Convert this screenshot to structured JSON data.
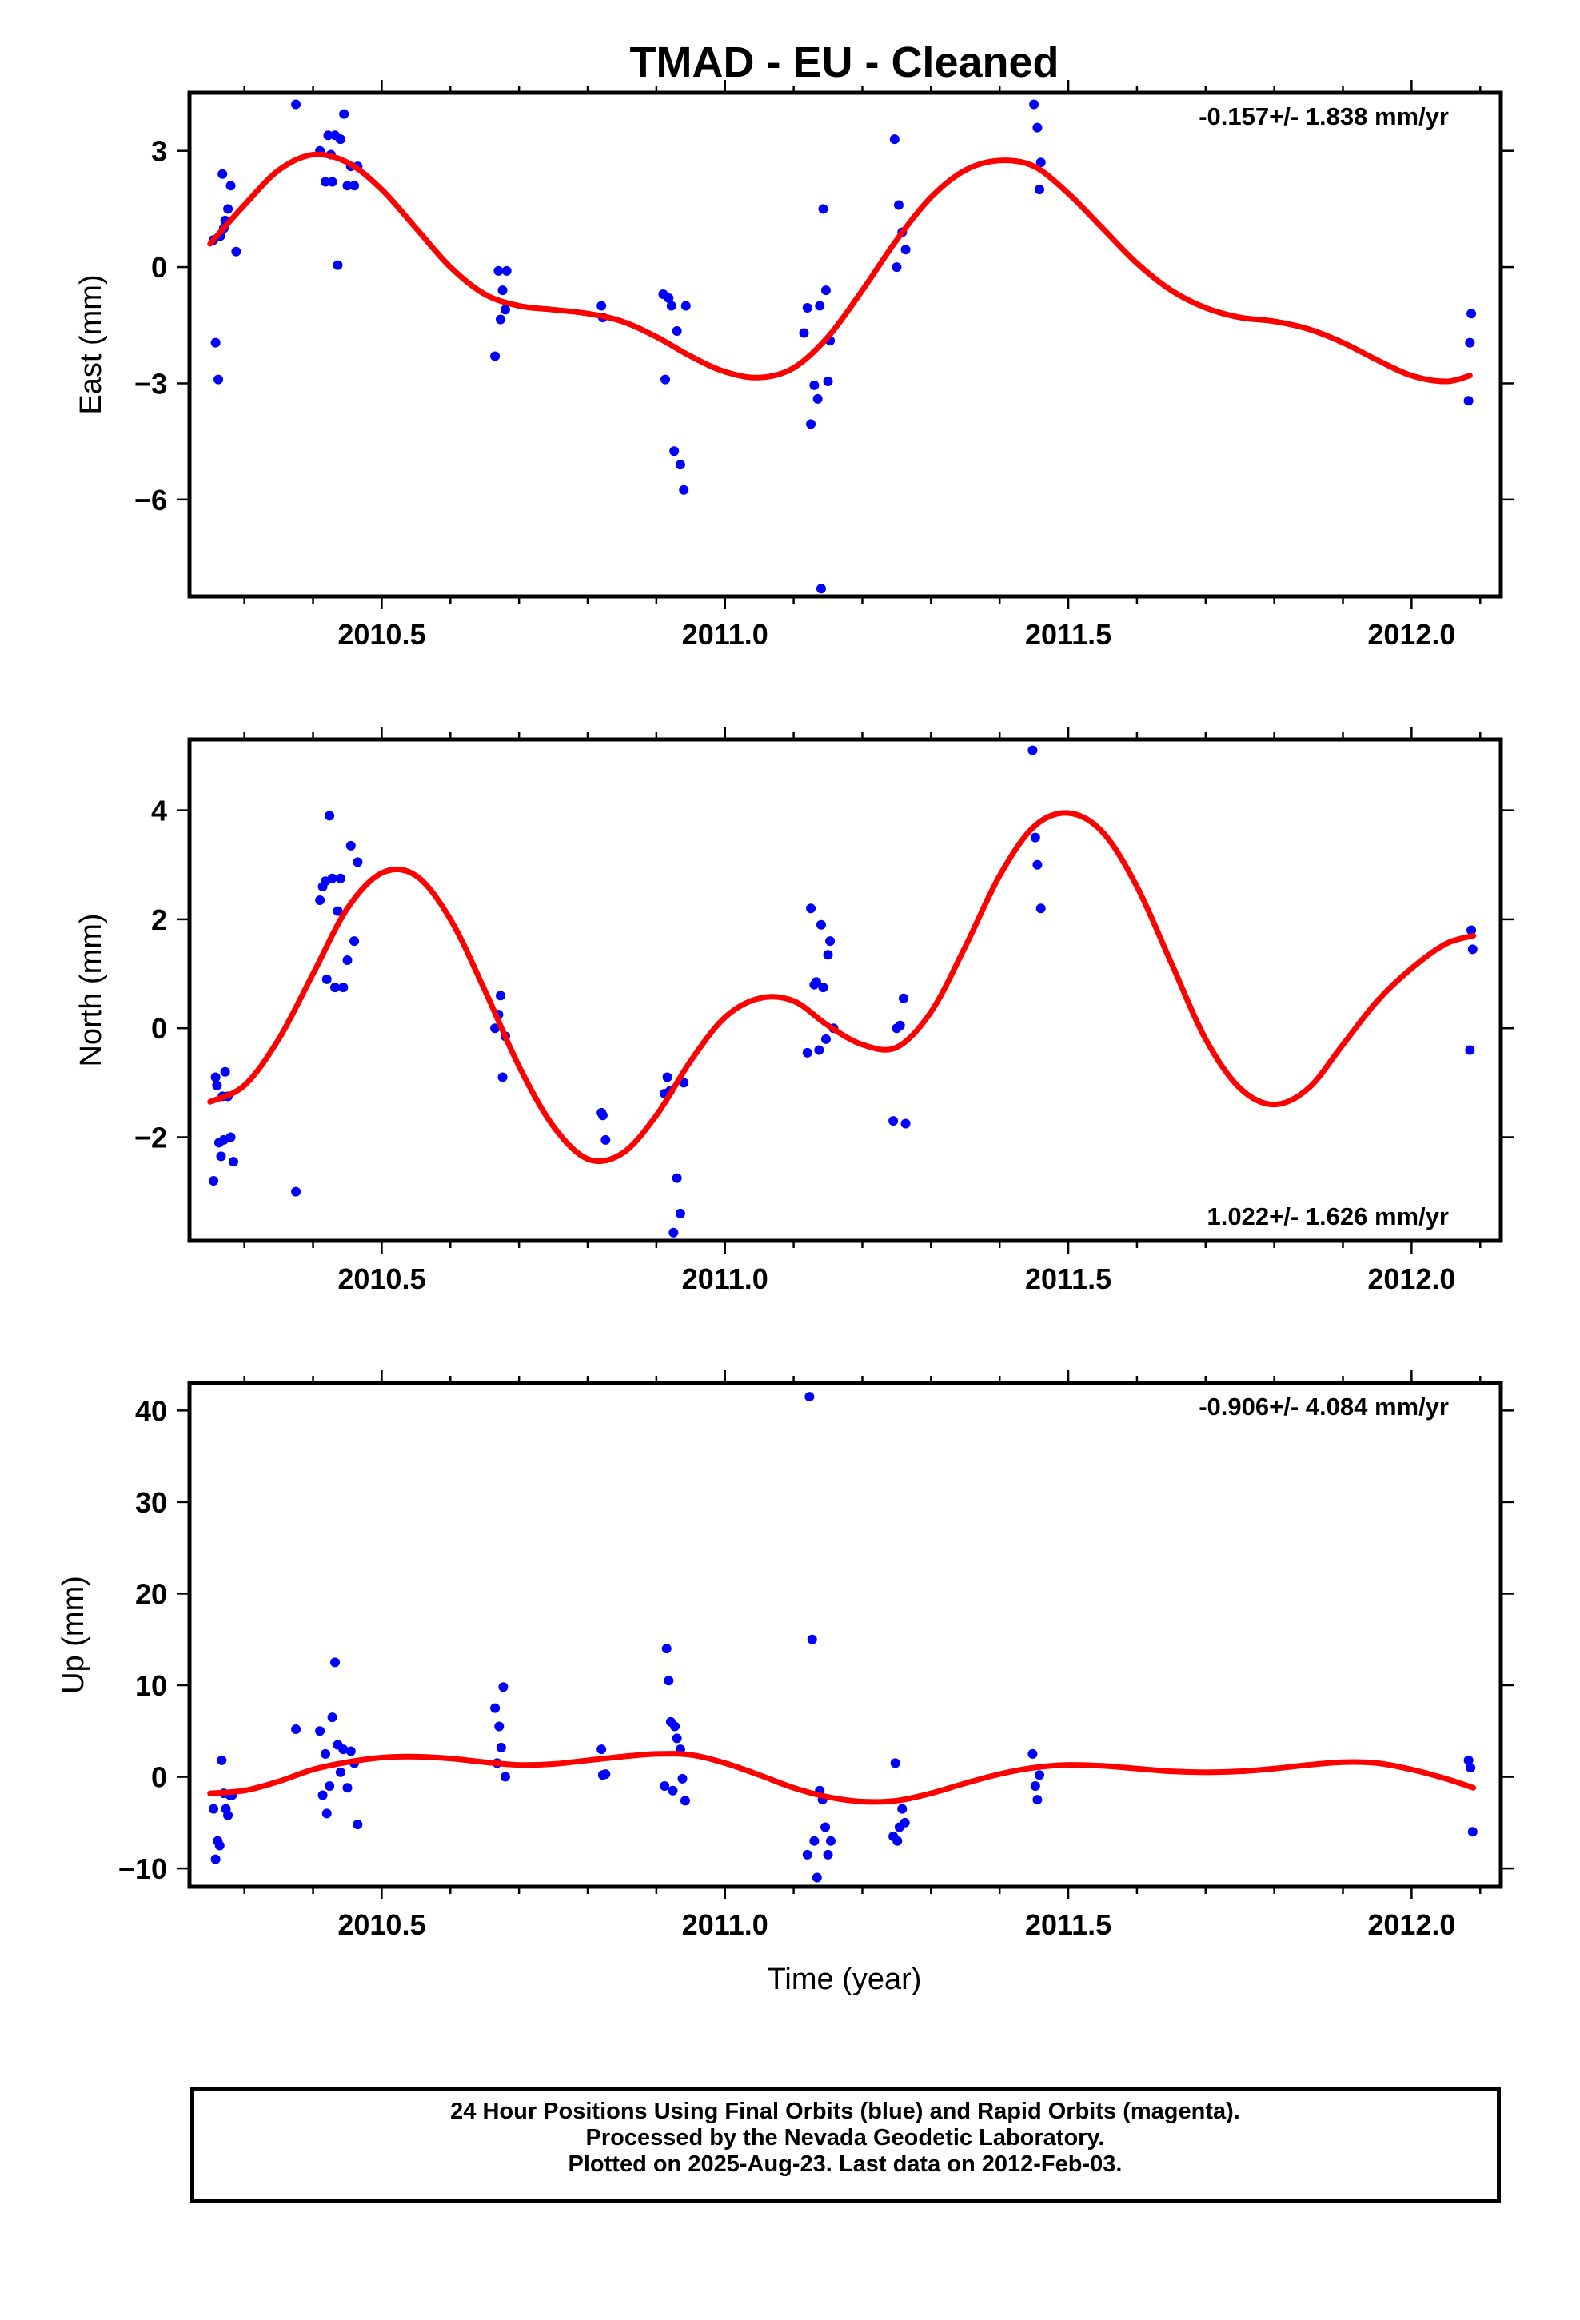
{
  "title": "TMAD  - EU - Cleaned",
  "xlabel": "Time (year)",
  "colors": {
    "fit": "#ff0000",
    "points": "#0000ff",
    "frame": "#000000"
  },
  "caption": [
    "24 Hour Positions Using Final Orbits (blue) and Rapid Orbits (magenta).",
    "Processed by the Nevada Geodetic Laboratory.",
    "Plotted on 2025-Aug-23. Last data on 2012-Feb-03."
  ],
  "chart_data": [
    {
      "type": "scatter",
      "ylabel": "East (mm)",
      "rate_label": "-0.157+/- 1.838 mm/yr",
      "rate_position": "top-right",
      "xlim": [
        2010.22,
        2012.13
      ],
      "ylim": [
        -8.5,
        4.5
      ],
      "xticks": [
        2010.5,
        2011.0,
        2011.5,
        2012.0
      ],
      "xtick_labels": [
        "2010.5",
        "2011.0",
        "2011.5",
        "2012.0"
      ],
      "yticks": [
        3,
        0,
        -3,
        -6
      ],
      "ytick_labels": [
        "3",
        "0",
        "−3",
        "−6"
      ],
      "series": [
        {
          "kind": "points",
          "x": [
            2010.255,
            2010.258,
            2010.262,
            2010.265,
            2010.268,
            2010.27,
            2010.272,
            2010.276,
            2010.28,
            2010.288,
            2010.375,
            2010.41,
            2010.418,
            2010.422,
            2010.426,
            2010.428,
            2010.432,
            2010.436,
            2010.44,
            2010.445,
            2010.45,
            2010.455,
            2010.46,
            2010.465,
            2010.665,
            2010.67,
            2010.673,
            2010.676,
            2010.68,
            2010.682,
            2010.82,
            2010.822,
            2010.91,
            2010.913,
            2010.918,
            2010.922,
            2010.926,
            2010.93,
            2010.935,
            2010.94,
            2010.943,
            2011.115,
            2011.12,
            2011.125,
            2011.13,
            2011.135,
            2011.138,
            2011.14,
            2011.143,
            2011.147,
            2011.15,
            2011.153,
            2011.247,
            2011.25,
            2011.253,
            2011.258,
            2011.263,
            2011.45,
            2011.455,
            2011.458,
            2011.46,
            2012.083,
            2012.085,
            2012.087
          ],
          "y": [
            0.7,
            -1.95,
            -2.9,
            0.8,
            2.4,
            1.0,
            1.2,
            1.5,
            2.1,
            0.4,
            4.2,
            3.0,
            2.2,
            3.4,
            2.9,
            2.2,
            3.4,
            0.05,
            3.3,
            3.95,
            2.1,
            2.6,
            2.1,
            2.6,
            -2.3,
            -0.1,
            -1.35,
            -0.6,
            -1.1,
            -0.1,
            -1.0,
            -1.3,
            -0.7,
            -2.9,
            -0.8,
            -1.0,
            -4.75,
            -1.65,
            -5.1,
            -5.75,
            -1.0,
            -1.7,
            -1.05,
            -4.05,
            -3.05,
            -3.4,
            -1.0,
            -8.3,
            1.5,
            -0.6,
            -2.95,
            -1.9,
            3.3,
            0.0,
            1.6,
            0.9,
            0.45,
            4.2,
            3.6,
            2.0,
            2.7,
            -3.45,
            -1.95,
            -1.2
          ]
        },
        {
          "kind": "fit",
          "x": [
            2010.25,
            2010.3,
            2010.35,
            2010.4,
            2010.45,
            2010.5,
            2010.55,
            2010.6,
            2010.65,
            2010.7,
            2010.75,
            2010.8,
            2010.85,
            2010.9,
            2010.95,
            2011.0,
            2011.05,
            2011.1,
            2011.15,
            2011.2,
            2011.25,
            2011.3,
            2011.35,
            2011.4,
            2011.45,
            2011.5,
            2011.55,
            2011.6,
            2011.65,
            2011.7,
            2011.75,
            2011.8,
            2011.85,
            2011.9,
            2011.95,
            2012.0,
            2012.05,
            2012.085
          ],
          "y": [
            0.6,
            1.6,
            2.5,
            2.9,
            2.7,
            2.0,
            1.0,
            0.0,
            -0.7,
            -1.0,
            -1.1,
            -1.2,
            -1.4,
            -1.8,
            -2.3,
            -2.7,
            -2.85,
            -2.6,
            -1.8,
            -0.6,
            0.7,
            1.8,
            2.5,
            2.75,
            2.6,
            1.9,
            1.0,
            0.1,
            -0.6,
            -1.05,
            -1.3,
            -1.4,
            -1.6,
            -1.95,
            -2.4,
            -2.8,
            -2.95,
            -2.8
          ]
        }
      ]
    },
    {
      "type": "scatter",
      "ylabel": "North (mm)",
      "rate_label": "1.022+/- 1.626 mm/yr",
      "rate_position": "bottom-right",
      "xlim": [
        2010.22,
        2012.13
      ],
      "ylim": [
        -3.9,
        5.3
      ],
      "xticks": [
        2010.5,
        2011.0,
        2011.5,
        2012.0
      ],
      "xtick_labels": [
        "2010.5",
        "2011.0",
        "2011.5",
        "2012.0"
      ],
      "yticks": [
        4,
        2,
        0,
        -2
      ],
      "ytick_labels": [
        "4",
        "2",
        "0",
        "−2"
      ],
      "series": [
        {
          "kind": "points",
          "x": [
            2010.255,
            2010.258,
            2010.26,
            2010.263,
            2010.266,
            2010.268,
            2010.27,
            2010.272,
            2010.276,
            2010.28,
            2010.284,
            2010.375,
            2010.41,
            2010.414,
            2010.418,
            2010.42,
            2010.424,
            2010.428,
            2010.432,
            2010.436,
            2010.44,
            2010.444,
            2010.45,
            2010.455,
            2010.46,
            2010.465,
            2010.665,
            2010.67,
            2010.673,
            2010.676,
            2010.68,
            2010.82,
            2010.822,
            2010.826,
            2010.912,
            2010.916,
            2010.92,
            2010.925,
            2010.93,
            2010.935,
            2010.94,
            2011.12,
            2011.125,
            2011.13,
            2011.133,
            2011.137,
            2011.14,
            2011.143,
            2011.147,
            2011.15,
            2011.153,
            2011.158,
            2011.245,
            2011.25,
            2011.255,
            2011.26,
            2011.263,
            2011.448,
            2011.452,
            2011.455,
            2011.46,
            2012.085,
            2012.087,
            2012.089
          ],
          "y": [
            -2.8,
            -0.9,
            -1.05,
            -2.1,
            -2.35,
            -1.25,
            -2.05,
            -0.8,
            -1.25,
            -2.0,
            -2.45,
            -3.0,
            2.35,
            2.6,
            2.7,
            0.9,
            3.9,
            2.75,
            0.75,
            2.15,
            2.75,
            0.75,
            1.25,
            3.35,
            1.6,
            3.05,
            0.0,
            0.25,
            0.6,
            -0.9,
            -0.15,
            -1.55,
            -1.6,
            -2.05,
            -1.2,
            -0.9,
            -1.15,
            -3.75,
            -2.75,
            -3.4,
            -1.0,
            -0.45,
            2.2,
            0.8,
            0.85,
            -0.4,
            1.9,
            0.75,
            -0.2,
            1.35,
            1.6,
            0.0,
            -1.7,
            0.0,
            0.05,
            0.55,
            -1.75,
            5.1,
            3.5,
            3.0,
            2.2,
            -0.4,
            1.8,
            1.45
          ]
        },
        {
          "kind": "fit",
          "x": [
            2010.25,
            2010.3,
            2010.35,
            2010.4,
            2010.45,
            2010.5,
            2010.55,
            2010.6,
            2010.65,
            2010.7,
            2010.75,
            2010.8,
            2010.85,
            2010.9,
            2010.95,
            2011.0,
            2011.05,
            2011.1,
            2011.15,
            2011.2,
            2011.25,
            2011.3,
            2011.35,
            2011.4,
            2011.45,
            2011.5,
            2011.55,
            2011.6,
            2011.65,
            2011.7,
            2011.75,
            2011.8,
            2011.85,
            2011.9,
            2011.95,
            2012.0,
            2012.05,
            2012.09
          ],
          "y": [
            -1.35,
            -1.05,
            -0.2,
            1.0,
            2.2,
            2.85,
            2.8,
            2.0,
            0.7,
            -0.7,
            -1.8,
            -2.4,
            -2.3,
            -1.6,
            -0.6,
            0.2,
            0.55,
            0.5,
            0.05,
            -0.3,
            -0.35,
            0.3,
            1.5,
            2.8,
            3.7,
            3.95,
            3.6,
            2.6,
            1.2,
            -0.2,
            -1.1,
            -1.4,
            -1.1,
            -0.3,
            0.5,
            1.1,
            1.55,
            1.7
          ]
        }
      ]
    },
    {
      "type": "scatter",
      "ylabel": "Up (mm)",
      "rate_label": "-0.906+/- 4.084 mm/yr",
      "rate_position": "top-right",
      "xlim": [
        2010.22,
        2012.13
      ],
      "ylim": [
        -12,
        43
      ],
      "xticks": [
        2010.5,
        2011.0,
        2011.5,
        2012.0
      ],
      "xtick_labels": [
        "2010.5",
        "2011.0",
        "2011.5",
        "2012.0"
      ],
      "yticks": [
        40,
        30,
        20,
        10,
        0,
        -10
      ],
      "ytick_labels": [
        "40",
        "30",
        "20",
        "10",
        "0",
        "−10"
      ],
      "series": [
        {
          "kind": "points",
          "x": [
            2010.255,
            2010.258,
            2010.261,
            2010.264,
            2010.267,
            2010.27,
            2010.273,
            2010.276,
            2010.279,
            2010.282,
            2010.375,
            2010.41,
            2010.414,
            2010.418,
            2010.42,
            2010.424,
            2010.428,
            2010.432,
            2010.436,
            2010.44,
            2010.444,
            2010.45,
            2010.455,
            2010.46,
            2010.465,
            2010.665,
            2010.668,
            2010.671,
            2010.674,
            2010.677,
            2010.68,
            2010.82,
            2010.822,
            2010.826,
            2010.912,
            2010.915,
            2010.918,
            2010.921,
            2010.924,
            2010.927,
            2010.93,
            2010.935,
            2010.938,
            2010.942,
            2011.12,
            2011.123,
            2011.127,
            2011.13,
            2011.134,
            2011.138,
            2011.142,
            2011.146,
            2011.15,
            2011.154,
            2011.245,
            2011.248,
            2011.251,
            2011.254,
            2011.258,
            2011.262,
            2011.448,
            2011.452,
            2011.455,
            2011.458,
            2012.083,
            2012.086,
            2012.089
          ],
          "y": [
            -3.5,
            -9.0,
            -7.0,
            -7.5,
            1.8,
            -1.8,
            -3.5,
            -4.2,
            -2.0,
            -2.0,
            5.2,
            5.0,
            -2.0,
            2.5,
            -4.0,
            -1.0,
            6.5,
            12.5,
            3.5,
            0.5,
            3.0,
            -1.2,
            2.8,
            1.5,
            -5.2,
            7.5,
            1.5,
            5.5,
            3.2,
            9.8,
            0.0,
            3.0,
            0.2,
            0.3,
            -1.0,
            14.0,
            10.5,
            6.0,
            -1.5,
            5.5,
            4.2,
            3.0,
            -0.2,
            -2.6,
            -8.5,
            41.5,
            15.0,
            -7.0,
            -11.0,
            -1.5,
            -2.5,
            -5.5,
            -8.5,
            -7.0,
            -6.5,
            1.5,
            -7.0,
            -5.5,
            -3.5,
            -5.0,
            2.5,
            -1.0,
            -2.5,
            0.2,
            1.8,
            1.0,
            -6.0
          ]
        },
        {
          "kind": "fit",
          "x": [
            2010.25,
            2010.3,
            2010.35,
            2010.4,
            2010.45,
            2010.5,
            2010.55,
            2010.6,
            2010.65,
            2010.7,
            2010.75,
            2010.8,
            2010.85,
            2010.9,
            2010.95,
            2011.0,
            2011.05,
            2011.1,
            2011.15,
            2011.2,
            2011.25,
            2011.3,
            2011.35,
            2011.4,
            2011.45,
            2011.5,
            2011.55,
            2011.6,
            2011.65,
            2011.7,
            2011.75,
            2011.8,
            2011.85,
            2011.9,
            2011.95,
            2012.0,
            2012.05,
            2012.09
          ],
          "y": [
            -1.8,
            -1.5,
            -0.5,
            0.8,
            1.6,
            2.1,
            2.2,
            2.0,
            1.6,
            1.3,
            1.4,
            1.8,
            2.2,
            2.5,
            2.4,
            1.5,
            0.2,
            -1.2,
            -2.2,
            -2.7,
            -2.6,
            -1.8,
            -0.7,
            0.3,
            1.0,
            1.3,
            1.2,
            0.9,
            0.6,
            0.5,
            0.6,
            0.9,
            1.3,
            1.6,
            1.5,
            0.8,
            -0.2,
            -1.2
          ]
        }
      ]
    }
  ]
}
